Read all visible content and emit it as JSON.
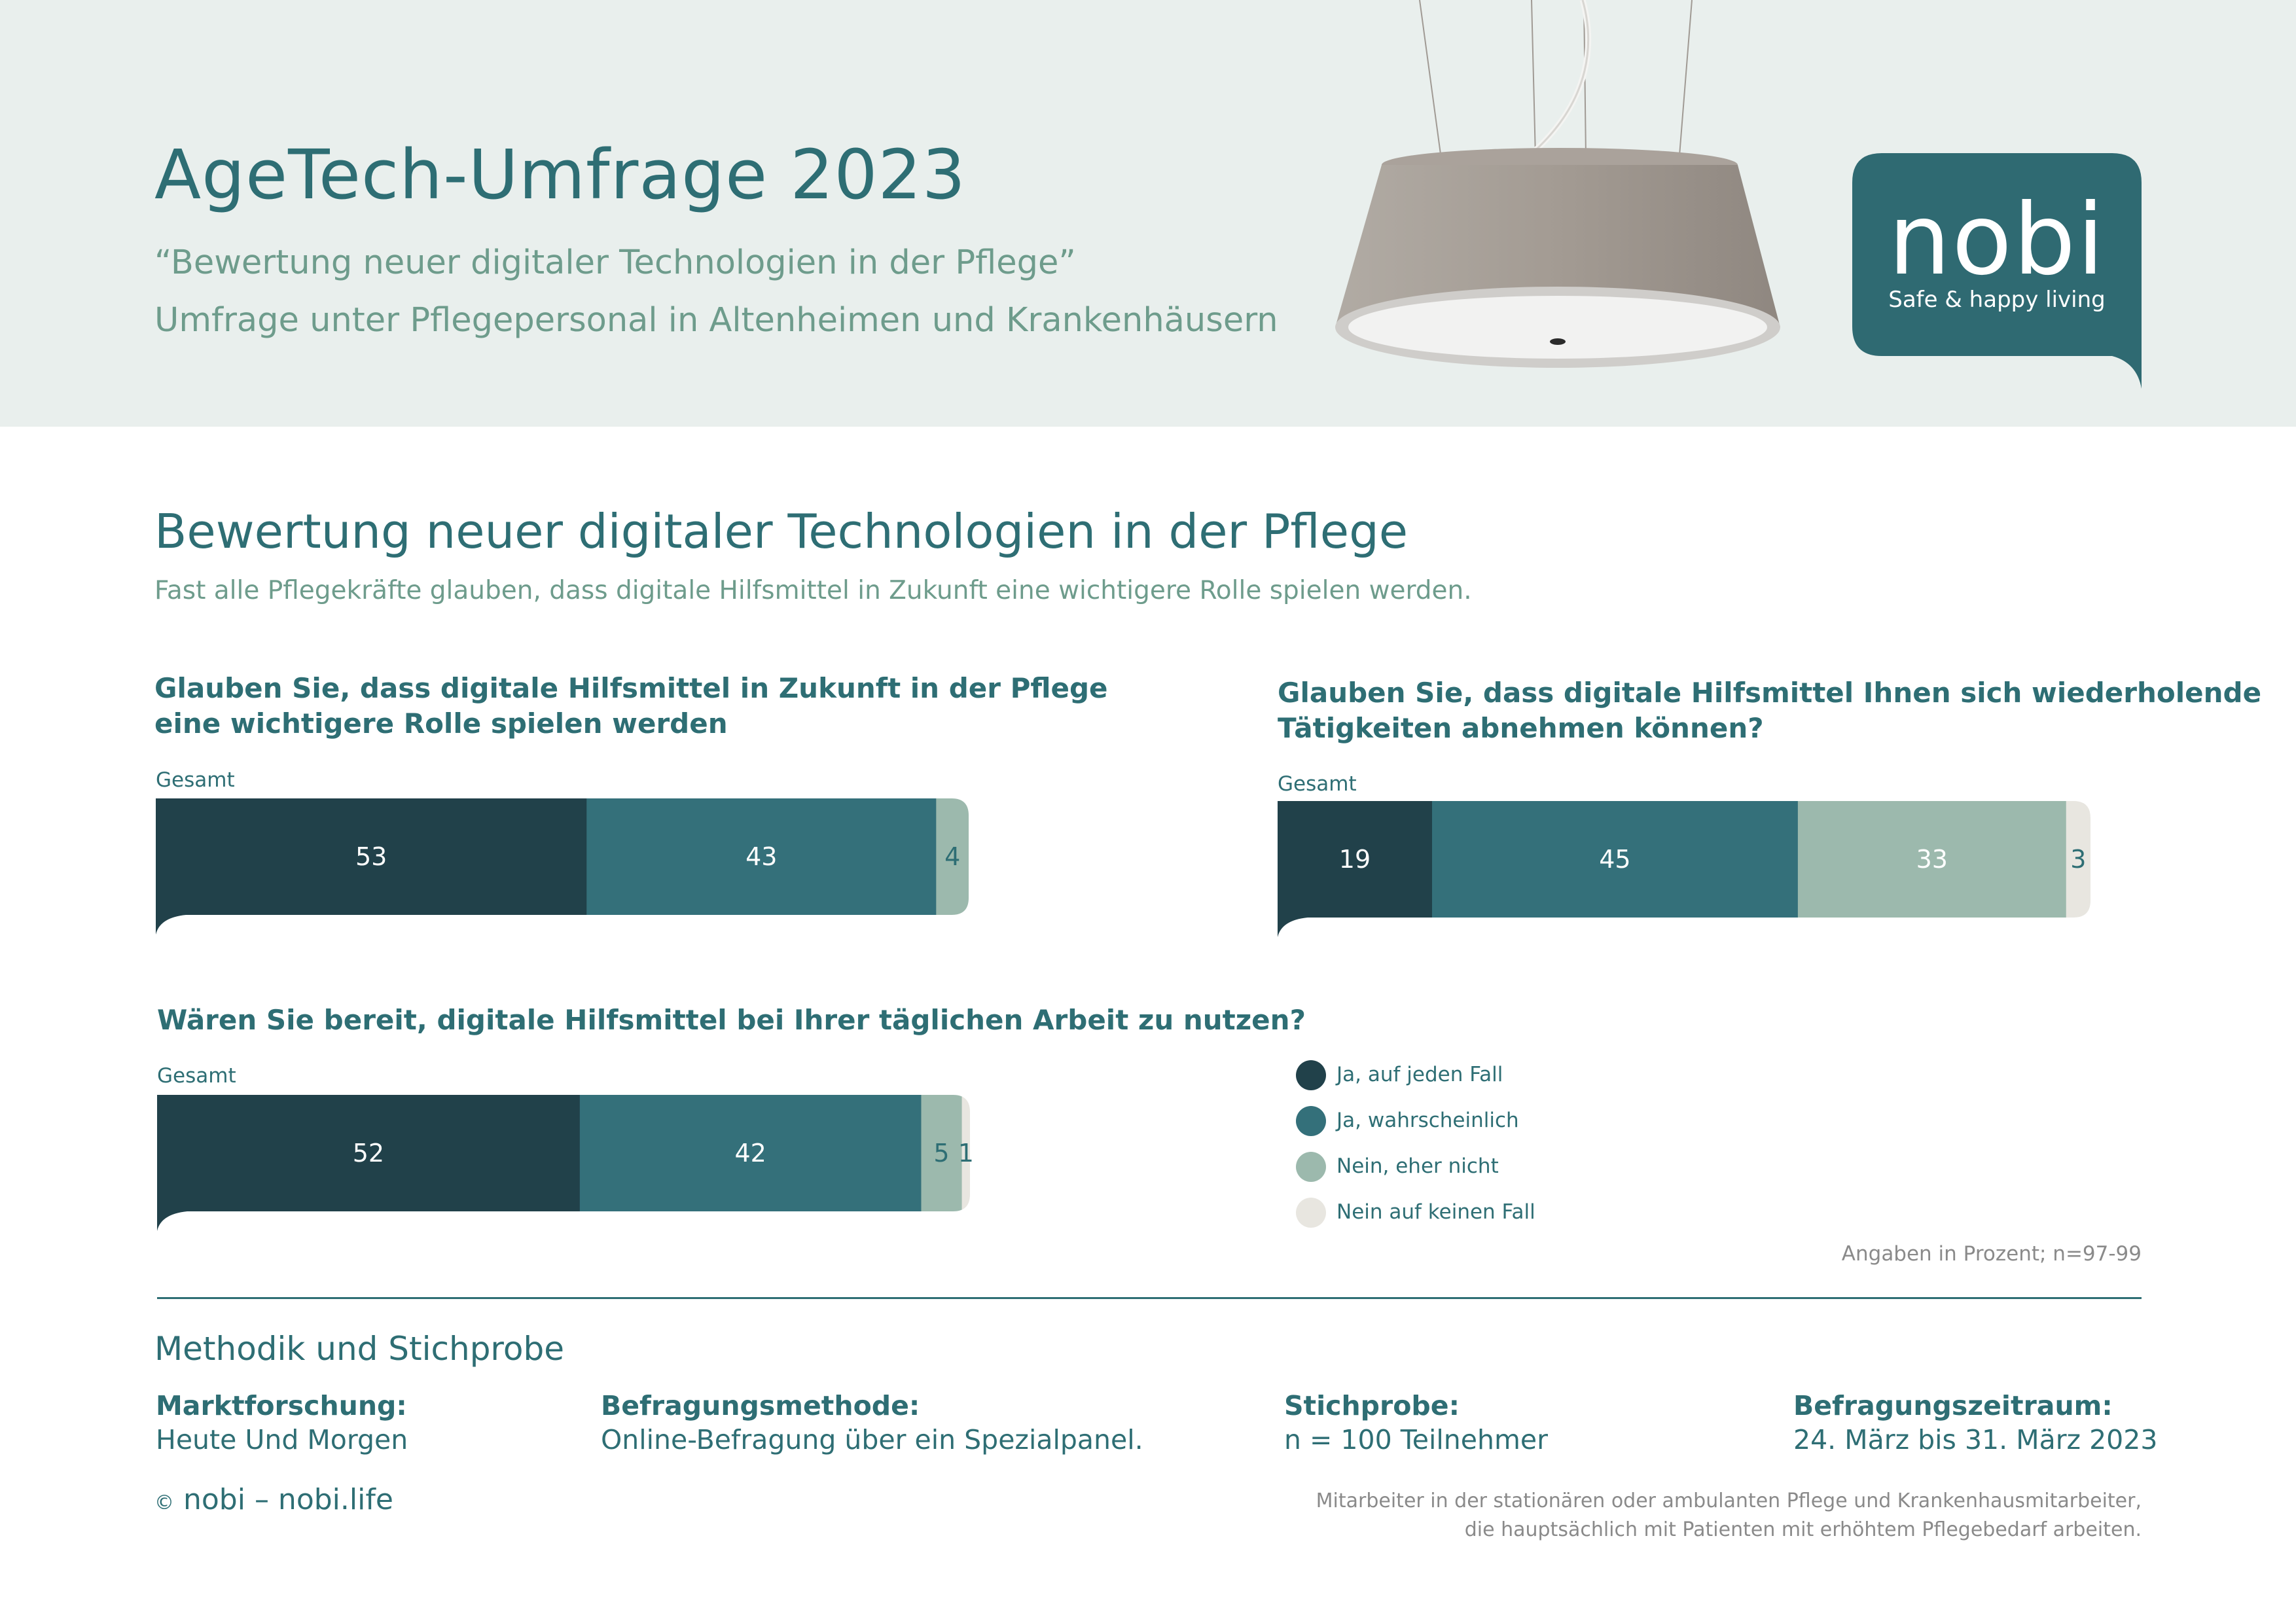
{
  "header": {
    "title": "AgeTech-Umfrage 2023",
    "subtitle_line1": "“Bewertung neuer digitaler Technologien in der Pflege”",
    "subtitle_line2": "Umfrage unter Pflegepersonal in Altenheimen und Krankenhäusern",
    "logo_word": "nobi",
    "logo_tagline": "Safe & happy living"
  },
  "section": {
    "title": "Bewertung neuer digitaler Technologien in der Pflege",
    "subtitle": "Fast alle Pflegekräfte glauben, dass digitale Hilfsmittel in Zukunft eine wichtigere Rolle spielen werden."
  },
  "chart_data": [
    {
      "type": "bar",
      "orientation": "horizontal-stacked-100",
      "question": "Glauben Sie, dass digitale Hilfsmittel in Zukunft in der Pflege eine wichtigere Rolle spielen werden",
      "question_lines": [
        "Glauben Sie, dass digitale Hilfsmittel in Zukunft in der Pflege",
        "eine wichtigere Rolle spielen werden"
      ],
      "categories": [
        "Gesamt"
      ],
      "series": [
        {
          "name": "Ja, auf jeden Fall",
          "values": [
            53
          ]
        },
        {
          "name": "Ja, wahrscheinlich",
          "values": [
            43
          ]
        },
        {
          "name": "Nein, eher nicht",
          "values": [
            4
          ]
        }
      ]
    },
    {
      "type": "bar",
      "orientation": "horizontal-stacked-100",
      "question": "Glauben Sie, dass digitale Hilfsmittel Ihnen sich wiederholende Tätigkeiten abnehmen können?",
      "question_lines": [
        "Glauben Sie, dass digitale Hilfsmittel Ihnen sich wiederholende",
        "Tätigkeiten abnehmen können?"
      ],
      "categories": [
        "Gesamt"
      ],
      "series": [
        {
          "name": "Ja, auf jeden Fall",
          "values": [
            19
          ]
        },
        {
          "name": "Ja, wahrscheinlich",
          "values": [
            45
          ]
        },
        {
          "name": "Nein, eher nicht",
          "values": [
            33
          ]
        },
        {
          "name": "Nein auf keinen Fall",
          "values": [
            3
          ]
        }
      ]
    },
    {
      "type": "bar",
      "orientation": "horizontal-stacked-100",
      "question": "Wären Sie bereit, digitale Hilfsmittel bei Ihrer täglichen Arbeit zu nutzen?",
      "question_lines": [
        "Wären Sie bereit, digitale Hilfsmittel bei Ihrer täglichen Arbeit zu nutzen?"
      ],
      "categories": [
        "Gesamt"
      ],
      "series": [
        {
          "name": "Ja, auf jeden Fall",
          "values": [
            52
          ]
        },
        {
          "name": "Ja, wahrscheinlich",
          "values": [
            42
          ]
        },
        {
          "name": "Nein, eher nicht",
          "values": [
            5
          ]
        },
        {
          "name": "Nein auf keinen Fall",
          "values": [
            1
          ]
        }
      ]
    }
  ],
  "legend": [
    {
      "label": "Ja, auf jeden Fall",
      "color": "#21414a"
    },
    {
      "label": "Ja, wahrscheinlich",
      "color": "#34707a"
    },
    {
      "label": "Nein, eher nicht",
      "color": "#9cb9ad"
    },
    {
      "label": "Nein auf keinen Fall",
      "color": "#e8e6e0"
    }
  ],
  "note": "Angaben in Prozent; n=97-99",
  "methodik": {
    "title": "Methodik und Stichprobe",
    "items": [
      {
        "label": "Marktforschung:",
        "value": "Heute Und Morgen"
      },
      {
        "label": "Befragungsmethode:",
        "value": "Online-Befragung über ein Spezialpanel."
      },
      {
        "label": "Stichprobe:",
        "value": "n = 100 Teilnehmer"
      },
      {
        "label": "Befragungszeitraum:",
        "value": "24. März bis 31. März 2023"
      }
    ]
  },
  "footer": {
    "copyright_symbol": "©",
    "copyright": "nobi – nobi.life",
    "footnote_line1": "Mitarbeiter in der stationären oder ambulanten Pflege und Krankenhausmitarbeiter,",
    "footnote_line2": "die hauptsächlich mit Patienten mit erhöhtem Pflegebedarf arbeiten."
  },
  "colors": {
    "primary": "#2e6e74",
    "subtitle_green": "#6e9c8c",
    "header_bg": "#e9efed",
    "label_light": "#ffffff",
    "label_dark": "#2e6e74"
  }
}
